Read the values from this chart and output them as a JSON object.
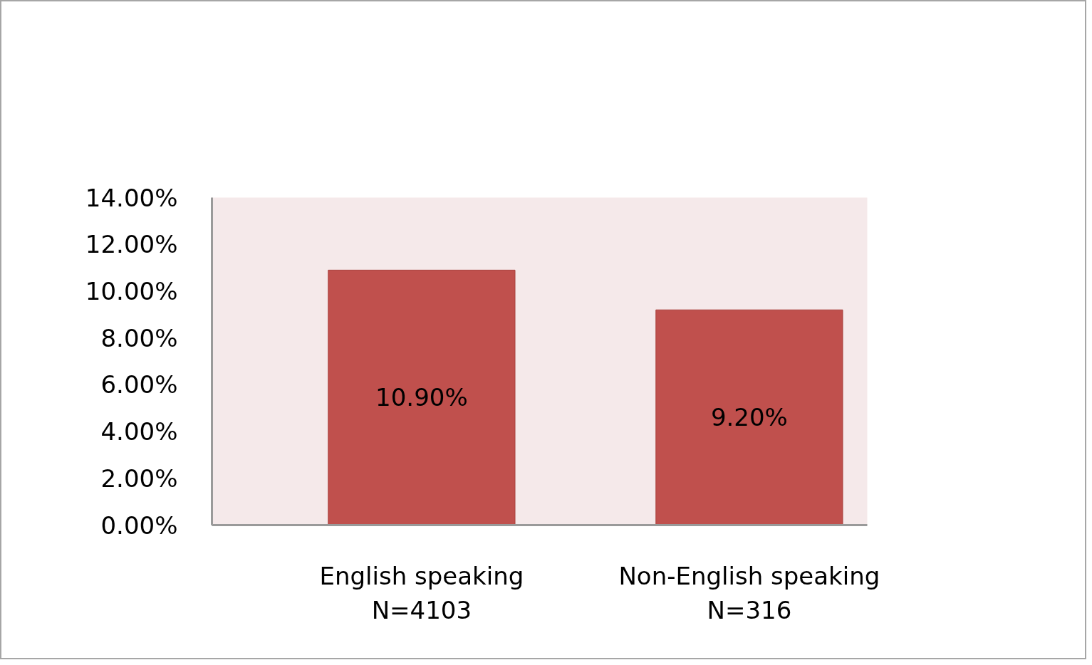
{
  "chart_data": {
    "type": "bar",
    "categories": [
      "English speaking\nN=4103",
      "Non-English speaking\nN=316"
    ],
    "series": [
      {
        "color": "#c0504d",
        "values": [
          10.9,
          9.2
        ]
      }
    ],
    "value_labels": [
      "10.90%",
      "9.20%"
    ],
    "ylim": [
      0,
      14
    ],
    "yticks": [
      {
        "value": 0,
        "label": "0.00%"
      },
      {
        "value": 2,
        "label": "2.00%"
      },
      {
        "value": 4,
        "label": "4.00%"
      },
      {
        "value": 6,
        "label": "6.00%"
      },
      {
        "value": 8,
        "label": "8.00%"
      },
      {
        "value": 10,
        "label": "10.00%"
      },
      {
        "value": 12,
        "label": "12.00%"
      },
      {
        "value": 14,
        "label": "14.00%"
      }
    ],
    "grid": false
  }
}
